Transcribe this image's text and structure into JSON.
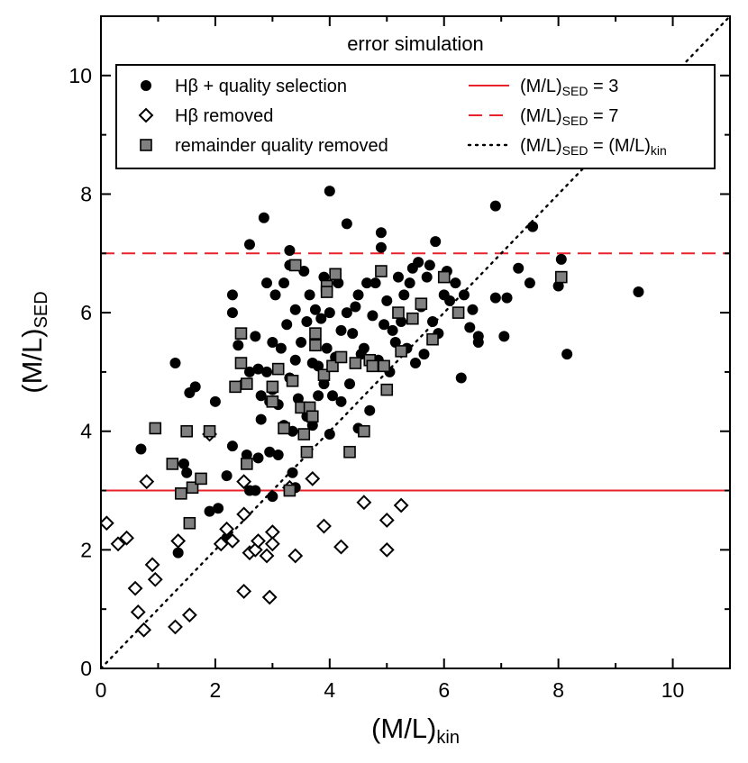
{
  "chart_data": {
    "type": "scatter",
    "title": "error simulation",
    "xlabel": {
      "main": "(M/L)",
      "sub": "kin"
    },
    "ylabel": {
      "main": "(M/L)",
      "sub": "SED"
    },
    "xlim": [
      0,
      11
    ],
    "ylim": [
      0,
      11
    ],
    "xticks": [
      "0",
      "2",
      "4",
      "6",
      "8",
      "10"
    ],
    "yticks": [
      "0",
      "2",
      "4",
      "6",
      "8",
      "10"
    ],
    "xtick_values": [
      0,
      2,
      4,
      6,
      8,
      10
    ],
    "ytick_values": [
      0,
      2,
      4,
      6,
      8,
      10
    ],
    "legend": {
      "placement": "top",
      "entries": [
        {
          "label": "Hβ + quality selection",
          "marker": "filled-circle"
        },
        {
          "label": "Hβ removed",
          "marker": "open-diamond"
        },
        {
          "label": "remainder quality removed",
          "marker": "gray-square"
        },
        {
          "label_main": "(M/L)",
          "label_sub": "SED",
          "label_rest": " = 3",
          "style": "solid-red-line"
        },
        {
          "label_main": "(M/L)",
          "label_sub": "SED",
          "label_rest": " = 7",
          "style": "dashed-red-line"
        },
        {
          "label_main": "(M/L)",
          "label_sub": "SED",
          "label_mid": " = (M/L)",
          "label_sub2": "kin",
          "style": "dotted-black-line"
        }
      ]
    },
    "reference_lines": [
      {
        "kind": "horizontal",
        "y": 3,
        "style": "solid",
        "color": "#e8222a"
      },
      {
        "kind": "horizontal",
        "y": 7,
        "style": "dashed",
        "color": "#e8222a"
      },
      {
        "kind": "one-to-one",
        "style": "dotted",
        "color": "#000000"
      }
    ],
    "series": [
      {
        "name": "Hβ + quality selection",
        "marker": "filled-circle",
        "points": [
          [
            0.7,
            3.7
          ],
          [
            1.3,
            5.15
          ],
          [
            1.35,
            1.95
          ],
          [
            1.45,
            3.45
          ],
          [
            1.5,
            3.3
          ],
          [
            1.55,
            4.65
          ],
          [
            1.65,
            4.75
          ],
          [
            1.9,
            2.65
          ],
          [
            2.0,
            4.5
          ],
          [
            2.05,
            2.7
          ],
          [
            2.2,
            3.25
          ],
          [
            2.3,
            3.75
          ],
          [
            2.3,
            6.3
          ],
          [
            2.3,
            6.0
          ],
          [
            2.4,
            5.45
          ],
          [
            2.5,
            4.8
          ],
          [
            2.55,
            3.6
          ],
          [
            2.6,
            5.0
          ],
          [
            2.6,
            7.15
          ],
          [
            2.7,
            3.0
          ],
          [
            2.7,
            5.6
          ],
          [
            2.75,
            3.55
          ],
          [
            2.75,
            5.05
          ],
          [
            2.8,
            4.2
          ],
          [
            2.8,
            4.6
          ],
          [
            2.85,
            7.6
          ],
          [
            2.9,
            5.0
          ],
          [
            2.9,
            6.5
          ],
          [
            2.95,
            4.5
          ],
          [
            2.95,
            3.65
          ],
          [
            3.0,
            2.9
          ],
          [
            3.0,
            4.7
          ],
          [
            3.0,
            5.5
          ],
          [
            3.05,
            6.3
          ],
          [
            3.1,
            4.45
          ],
          [
            3.1,
            3.6
          ],
          [
            3.15,
            5.4
          ],
          [
            3.2,
            6.5
          ],
          [
            3.25,
            5.8
          ],
          [
            3.3,
            4.9
          ],
          [
            3.3,
            6.8
          ],
          [
            3.3,
            7.05
          ],
          [
            3.35,
            3.3
          ],
          [
            3.35,
            4.0
          ],
          [
            3.4,
            5.2
          ],
          [
            3.4,
            6.05
          ],
          [
            3.4,
            3.05
          ],
          [
            3.45,
            4.55
          ],
          [
            3.5,
            5.5
          ],
          [
            3.55,
            6.7
          ],
          [
            3.6,
            4.25
          ],
          [
            3.6,
            5.85
          ],
          [
            3.65,
            6.3
          ],
          [
            3.7,
            4.1
          ],
          [
            3.7,
            5.15
          ],
          [
            3.75,
            6.05
          ],
          [
            3.8,
            4.6
          ],
          [
            3.8,
            5.1
          ],
          [
            3.85,
            5.9
          ],
          [
            3.9,
            6.6
          ],
          [
            3.9,
            4.8
          ],
          [
            3.95,
            5.4
          ],
          [
            4.0,
            8.05
          ],
          [
            4.0,
            6.0
          ],
          [
            4.0,
            3.95
          ],
          [
            4.05,
            4.6
          ],
          [
            4.1,
            5.25
          ],
          [
            4.15,
            6.5
          ],
          [
            4.2,
            5.7
          ],
          [
            4.2,
            4.5
          ],
          [
            4.3,
            7.5
          ],
          [
            4.3,
            6.0
          ],
          [
            4.35,
            4.8
          ],
          [
            4.4,
            5.65
          ],
          [
            4.45,
            6.1
          ],
          [
            4.5,
            6.3
          ],
          [
            4.5,
            4.05
          ],
          [
            4.55,
            5.3
          ],
          [
            4.6,
            5.4
          ],
          [
            4.65,
            6.5
          ],
          [
            4.7,
            4.35
          ],
          [
            4.75,
            5.95
          ],
          [
            4.8,
            6.5
          ],
          [
            4.85,
            5.2
          ],
          [
            4.9,
            7.35
          ],
          [
            4.9,
            7.1
          ],
          [
            4.95,
            5.8
          ],
          [
            5.0,
            6.2
          ],
          [
            5.05,
            5.0
          ],
          [
            5.1,
            5.7
          ],
          [
            5.15,
            5.5
          ],
          [
            5.2,
            6.6
          ],
          [
            5.25,
            5.85
          ],
          [
            5.3,
            6.3
          ],
          [
            5.35,
            5.4
          ],
          [
            5.4,
            6.5
          ],
          [
            5.45,
            6.75
          ],
          [
            5.5,
            5.15
          ],
          [
            5.55,
            6.85
          ],
          [
            5.6,
            6.1
          ],
          [
            5.65,
            5.3
          ],
          [
            5.7,
            6.6
          ],
          [
            5.75,
            6.8
          ],
          [
            5.8,
            5.85
          ],
          [
            5.85,
            7.2
          ],
          [
            5.9,
            5.65
          ],
          [
            6.0,
            6.3
          ],
          [
            6.05,
            6.7
          ],
          [
            6.1,
            6.2
          ],
          [
            6.2,
            6.5
          ],
          [
            6.3,
            4.9
          ],
          [
            6.35,
            6.3
          ],
          [
            6.45,
            5.75
          ],
          [
            6.5,
            6.05
          ],
          [
            6.6,
            5.6
          ],
          [
            6.6,
            5.5
          ],
          [
            6.9,
            7.8
          ],
          [
            6.9,
            6.25
          ],
          [
            7.05,
            5.6
          ],
          [
            7.1,
            6.25
          ],
          [
            7.3,
            6.75
          ],
          [
            7.5,
            6.5
          ],
          [
            7.55,
            7.45
          ],
          [
            8.0,
            6.45
          ],
          [
            8.05,
            6.9
          ],
          [
            8.15,
            5.3
          ],
          [
            9.4,
            6.35
          ],
          [
            2.2,
            2.2
          ],
          [
            2.6,
            3.0
          ],
          [
            3.2,
            4.1
          ]
        ]
      },
      {
        "name": "Hβ removed",
        "marker": "open-diamond",
        "points": [
          [
            0.1,
            2.45
          ],
          [
            0.3,
            2.1
          ],
          [
            0.45,
            2.2
          ],
          [
            0.6,
            1.35
          ],
          [
            0.65,
            0.95
          ],
          [
            0.75,
            0.65
          ],
          [
            0.8,
            3.15
          ],
          [
            0.9,
            1.75
          ],
          [
            0.95,
            1.5
          ],
          [
            1.3,
            0.7
          ],
          [
            1.35,
            2.15
          ],
          [
            1.55,
            0.9
          ],
          [
            1.9,
            3.95
          ],
          [
            2.1,
            2.1
          ],
          [
            2.2,
            2.35
          ],
          [
            2.3,
            2.15
          ],
          [
            2.5,
            1.3
          ],
          [
            2.5,
            3.15
          ],
          [
            2.5,
            2.6
          ],
          [
            2.6,
            1.95
          ],
          [
            2.7,
            2.0
          ],
          [
            2.75,
            2.15
          ],
          [
            2.9,
            1.9
          ],
          [
            2.95,
            1.2
          ],
          [
            3.0,
            2.3
          ],
          [
            3.0,
            2.1
          ],
          [
            3.3,
            3.05
          ],
          [
            3.4,
            1.9
          ],
          [
            3.7,
            3.2
          ],
          [
            3.9,
            2.4
          ],
          [
            4.2,
            2.05
          ],
          [
            4.6,
            2.8
          ],
          [
            5.0,
            2.5
          ],
          [
            5.0,
            2.0
          ],
          [
            5.25,
            2.75
          ]
        ]
      },
      {
        "name": "remainder quality removed",
        "marker": "gray-square",
        "points": [
          [
            0.95,
            4.05
          ],
          [
            1.25,
            3.45
          ],
          [
            1.4,
            2.95
          ],
          [
            1.5,
            4.0
          ],
          [
            1.55,
            2.45
          ],
          [
            1.6,
            3.05
          ],
          [
            1.75,
            3.2
          ],
          [
            1.9,
            4.0
          ],
          [
            2.35,
            4.75
          ],
          [
            2.45,
            5.65
          ],
          [
            2.45,
            5.15
          ],
          [
            2.55,
            3.45
          ],
          [
            2.55,
            4.8
          ],
          [
            3.0,
            4.5
          ],
          [
            3.0,
            4.75
          ],
          [
            3.1,
            5.05
          ],
          [
            3.2,
            4.05
          ],
          [
            3.3,
            3.0
          ],
          [
            3.35,
            4.85
          ],
          [
            3.4,
            6.8
          ],
          [
            3.5,
            4.4
          ],
          [
            3.55,
            3.95
          ],
          [
            3.6,
            3.65
          ],
          [
            3.65,
            4.4
          ],
          [
            3.7,
            4.25
          ],
          [
            3.75,
            5.65
          ],
          [
            3.75,
            5.45
          ],
          [
            3.9,
            4.95
          ],
          [
            3.95,
            6.45
          ],
          [
            3.95,
            6.35
          ],
          [
            4.05,
            5.1
          ],
          [
            4.1,
            6.65
          ],
          [
            4.2,
            5.25
          ],
          [
            4.35,
            3.65
          ],
          [
            4.45,
            5.15
          ],
          [
            4.6,
            4.0
          ],
          [
            4.7,
            5.2
          ],
          [
            4.75,
            5.1
          ],
          [
            4.9,
            6.7
          ],
          [
            4.95,
            5.1
          ],
          [
            5.0,
            4.7
          ],
          [
            5.2,
            6.0
          ],
          [
            5.25,
            5.35
          ],
          [
            5.45,
            5.9
          ],
          [
            5.6,
            6.15
          ],
          [
            5.8,
            5.55
          ],
          [
            6.0,
            6.6
          ],
          [
            6.25,
            6.0
          ],
          [
            8.05,
            6.6
          ]
        ]
      }
    ]
  },
  "colors": {
    "axis": "#000000",
    "reference_red": "#e8222a",
    "circle_fill": "#000000",
    "square_fill": "#808080",
    "diamond_fill": "#ffffff"
  }
}
